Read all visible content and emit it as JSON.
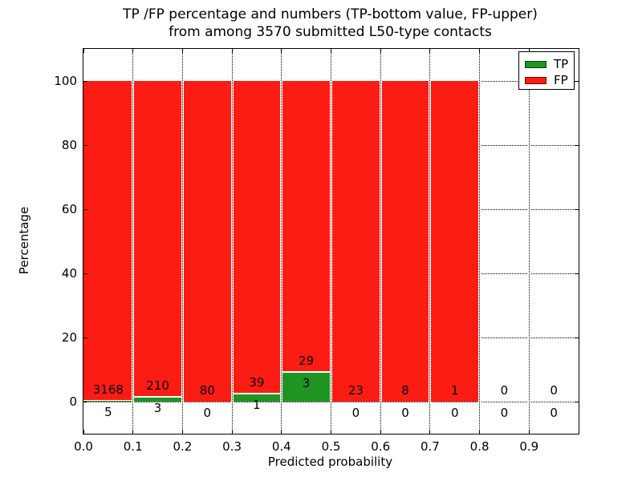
{
  "chart_data": {
    "type": "bar",
    "stacked": true,
    "title_line1": "TP /FP percentage and numbers (TP-bottom value, FP-upper)",
    "title_line2": "from among 3570 submitted L50-type contacts",
    "xlabel": "Predicted probability",
    "ylabel": "Percentage",
    "total_contacts": 3570,
    "bin_edges": [
      0.0,
      0.1,
      0.2,
      0.3,
      0.4,
      0.5,
      0.6,
      0.7,
      0.8,
      0.9,
      1.0
    ],
    "categories": [
      "0.0-0.1",
      "0.1-0.2",
      "0.2-0.3",
      "0.3-0.4",
      "0.4-0.5",
      "0.5-0.6",
      "0.6-0.7",
      "0.7-0.8",
      "0.8-0.9",
      "0.9-1.0"
    ],
    "series": [
      {
        "name": "TP",
        "color": "#209420",
        "counts": [
          5,
          3,
          0,
          1,
          3,
          0,
          0,
          0,
          0,
          0
        ]
      },
      {
        "name": "FP",
        "color": "#fb1c13",
        "counts": [
          3168,
          210,
          80,
          39,
          29,
          23,
          8,
          1,
          0,
          0
        ]
      }
    ],
    "bar_value_labels": {
      "tp_bottom": [
        "5",
        "3",
        "0",
        "1",
        "3",
        "0",
        "0",
        "0",
        "0",
        "0"
      ],
      "fp_upper": [
        "3168",
        "210",
        "80",
        "39",
        "29",
        "23",
        "8",
        "1",
        "0",
        "0"
      ]
    },
    "percent_stack_total": 100,
    "x_ticks": [
      "0.0",
      "0.1",
      "0.2",
      "0.3",
      "0.4",
      "0.5",
      "0.6",
      "0.7",
      "0.8",
      "0.9"
    ],
    "y_ticks": [
      "0",
      "20",
      "40",
      "60",
      "80",
      "100"
    ],
    "xlim": [
      0.0,
      1.0
    ],
    "ylim": [
      -10,
      110
    ],
    "grid": "dotted",
    "legend": {
      "position": "upper right",
      "entries": [
        {
          "label": "TP",
          "color": "#209420"
        },
        {
          "label": "FP",
          "color": "#fb1c13"
        }
      ]
    }
  }
}
